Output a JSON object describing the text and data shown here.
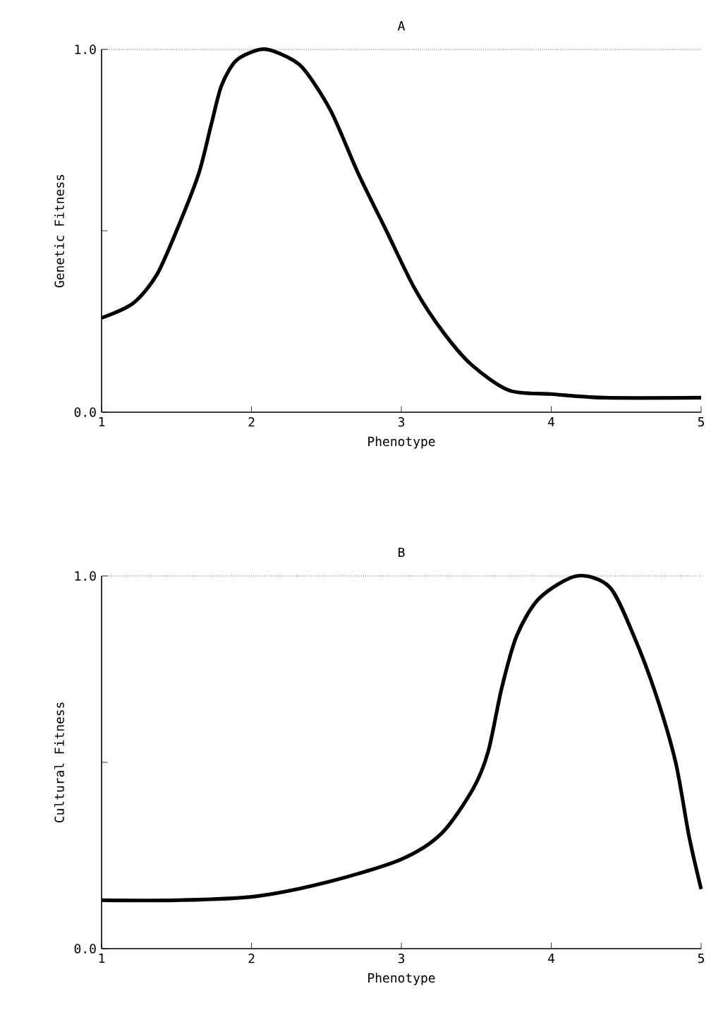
{
  "chart_data": [
    {
      "type": "line",
      "title": "A",
      "xlabel": "Phenotype",
      "ylabel": "Genetic Fitness",
      "xlim": [
        1,
        5
      ],
      "ylim": [
        0,
        1
      ],
      "xticks": [
        1,
        2,
        3,
        4,
        5
      ],
      "yticks": [
        {
          "value": 0,
          "label": "0.0"
        },
        {
          "value": 0.5,
          "label": null
        },
        {
          "value": 1,
          "label": "1.0"
        }
      ],
      "ref_lines": [
        {
          "axis": "y",
          "value": 1,
          "line_style": "dotted"
        }
      ],
      "series": [
        {
          "color": "#000000",
          "x": [
            1,
            1.21,
            1.37,
            1.52,
            1.65,
            1.73,
            1.8,
            1.9,
            2.06,
            2.18,
            2.34,
            2.53,
            2.71,
            2.9,
            3.09,
            3.28,
            3.47,
            3.72,
            4.0,
            4.35,
            5
          ],
          "values": [
            0.26,
            0.3,
            0.38,
            0.52,
            0.66,
            0.79,
            0.9,
            0.97,
            1.0,
            0.99,
            0.95,
            0.83,
            0.66,
            0.5,
            0.34,
            0.22,
            0.13,
            0.06,
            0.05,
            0.04,
            0.04
          ]
        }
      ]
    },
    {
      "type": "line",
      "title": "B",
      "xlabel": "Phenotype",
      "ylabel": "Cultural Fitness",
      "xlim": [
        1,
        5
      ],
      "ylim": [
        0,
        1
      ],
      "xticks": [
        1,
        2,
        3,
        4,
        5
      ],
      "yticks": [
        {
          "value": 0,
          "label": "0.0"
        },
        {
          "value": 0.5,
          "label": null
        },
        {
          "value": 1,
          "label": "1.0"
        }
      ],
      "ref_lines": [
        {
          "axis": "y",
          "value": 1,
          "line_style": "dotted"
        }
      ],
      "series": [
        {
          "color": "#000000",
          "x": [
            1,
            1.5,
            2.02,
            2.52,
            3.0,
            3.27,
            3.48,
            3.58,
            3.67,
            3.77,
            3.92,
            4.17,
            4.39,
            4.55,
            4.7,
            4.83,
            4.92,
            5.0
          ],
          "values": [
            0.13,
            0.13,
            0.14,
            0.18,
            0.24,
            0.31,
            0.43,
            0.53,
            0.7,
            0.84,
            0.94,
            1.0,
            0.97,
            0.84,
            0.68,
            0.5,
            0.3,
            0.16
          ]
        }
      ]
    }
  ]
}
